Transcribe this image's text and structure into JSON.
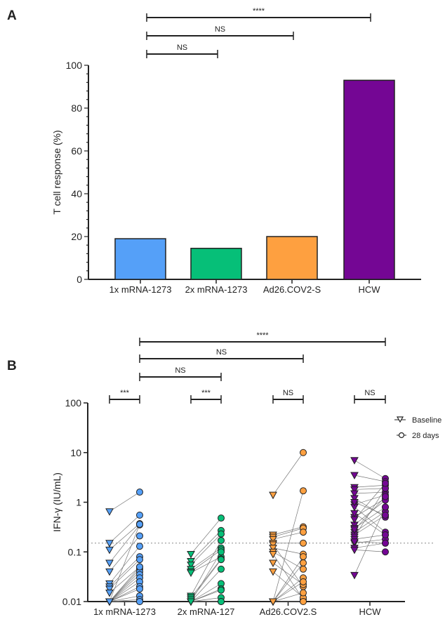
{
  "chart_data": [
    {
      "type": "bar",
      "panel": "A",
      "title": "",
      "xlabel": "",
      "ylabel": "T cell response (%)",
      "ylim": [
        0,
        100
      ],
      "yticks": [
        "0",
        "20",
        "40",
        "60",
        "80",
        "100"
      ],
      "categories": [
        "1x mRNA-1273",
        "2x mRNA-1273",
        "Ad26.COV2-S",
        "HCW"
      ],
      "values": [
        19,
        14.5,
        20,
        93
      ],
      "colors": [
        "#55a0f8",
        "#06bf78",
        "#fea040",
        "#740694"
      ],
      "significance": [
        {
          "from": 0,
          "to": 1,
          "label": "NS"
        },
        {
          "from": 0,
          "to": 2,
          "label": "NS"
        },
        {
          "from": 0,
          "to": 3,
          "label": "****"
        }
      ]
    },
    {
      "type": "scatter",
      "panel": "B",
      "xlabel": "",
      "ylabel": "IFN-γ (IU/mL)",
      "yscale": "log",
      "ylim": [
        0.01,
        100
      ],
      "yticks": [
        "0.01",
        "0.1",
        "1",
        "10",
        "100"
      ],
      "threshold": 0.15,
      "categories": [
        "1x mRNA-1273",
        "2x mRNA-127",
        "Ad26.COV2.S",
        "HCW"
      ],
      "colors": [
        "#55a0f8",
        "#06bf78",
        "#fea040",
        "#740694"
      ],
      "legend": {
        "position": "top-right",
        "entries": [
          "Baseline",
          "28 days"
        ]
      },
      "series": [
        {
          "name": "1x mRNA-1273",
          "pairs_baseline_28days": [
            [
              0.65,
              1.6
            ],
            [
              0.15,
              0.55
            ],
            [
              0.11,
              0.37
            ],
            [
              0.06,
              0.35
            ],
            [
              0.04,
              0.21
            ],
            [
              0.023,
              0.13
            ],
            [
              0.02,
              0.08
            ],
            [
              0.018,
              0.07
            ],
            [
              0.015,
              0.05
            ],
            [
              0.01,
              0.045
            ],
            [
              0.01,
              0.04
            ],
            [
              0.01,
              0.035
            ],
            [
              0.01,
              0.03
            ],
            [
              0.01,
              0.025
            ],
            [
              0.01,
              0.02
            ],
            [
              0.01,
              0.018
            ],
            [
              0.01,
              0.013
            ],
            [
              0.01,
              0.011
            ],
            [
              0.01,
              0.01
            ],
            [
              0.01,
              0.05
            ],
            [
              0.01,
              0.36
            ],
            [
              0.01,
              0.01
            ]
          ]
        },
        {
          "name": "2x mRNA-127",
          "pairs_baseline_28days": [
            [
              0.09,
              0.48
            ],
            [
              0.065,
              0.27
            ],
            [
              0.055,
              0.23
            ],
            [
              0.045,
              0.12
            ],
            [
              0.04,
              0.11
            ],
            [
              0.038,
              0.08
            ],
            [
              0.013,
              0.17
            ],
            [
              0.012,
              0.072
            ],
            [
              0.011,
              0.07
            ],
            [
              0.01,
              0.1
            ],
            [
              0.01,
              0.045
            ],
            [
              0.01,
              0.023
            ],
            [
              0.01,
              0.018
            ],
            [
              0.01,
              0.017
            ],
            [
              0.01,
              0.012
            ],
            [
              0.01,
              0.01
            ],
            [
              0.01,
              0.01
            ]
          ]
        },
        {
          "name": "Ad26.COV2.S",
          "pairs_baseline_28days": [
            [
              1.4,
              10
            ],
            [
              0.01,
              1.7
            ],
            [
              0.22,
              0.32
            ],
            [
              0.2,
              0.3
            ],
            [
              0.18,
              0.25
            ],
            [
              0.15,
              0.15
            ],
            [
              0.14,
              0.02
            ],
            [
              0.12,
              0.09
            ],
            [
              0.1,
              0.045
            ],
            [
              0.09,
              0.011
            ],
            [
              0.06,
              0.022
            ],
            [
              0.04,
              0.012
            ],
            [
              0.01,
              0.08
            ],
            [
              0.01,
              0.06
            ],
            [
              0.01,
              0.03
            ],
            [
              0.01,
              0.025
            ],
            [
              0.01,
              0.015
            ],
            [
              0.01,
              0.01
            ]
          ]
        },
        {
          "name": "HCW",
          "pairs_baseline_28days": [
            [
              7,
              3
            ],
            [
              3.5,
              2.6
            ],
            [
              2,
              2.2
            ],
            [
              1.8,
              1.9
            ],
            [
              1.5,
              1.6
            ],
            [
              1.2,
              0.5
            ],
            [
              0.9,
              1.4
            ],
            [
              0.8,
              0.25
            ],
            [
              0.5,
              1.2
            ],
            [
              0.35,
              1.1
            ],
            [
              0.3,
              0.8
            ],
            [
              0.25,
              0.65
            ],
            [
              0.22,
              0.55
            ],
            [
              0.2,
              1.9
            ],
            [
              0.18,
              0.22
            ],
            [
              0.15,
              0.18
            ],
            [
              0.12,
              0.15
            ],
            [
              0.11,
              0.1
            ],
            [
              0.034,
              0.8
            ],
            [
              0.6,
              0.22
            ],
            [
              1.0,
              0.55
            ],
            [
              0.45,
              2.4
            ],
            [
              0.28,
              1.3
            ],
            [
              0.16,
              0.15
            ]
          ]
        }
      ],
      "significance": [
        {
          "group": 0,
          "label": "***"
        },
        {
          "group": 1,
          "label": "***"
        },
        {
          "group": 2,
          "label": "NS"
        },
        {
          "group": 3,
          "label": "NS"
        },
        {
          "from": 0,
          "to": 1,
          "label": "NS"
        },
        {
          "from": 0,
          "to": 2,
          "label": "NS"
        },
        {
          "from": 0,
          "to": 3,
          "label": "****"
        }
      ]
    }
  ],
  "panels": {
    "a": "A",
    "b": "B"
  }
}
